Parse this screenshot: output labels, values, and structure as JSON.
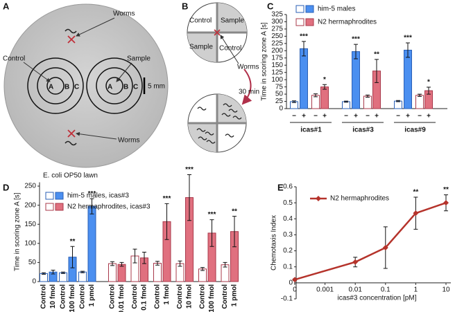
{
  "panel_a": {
    "label": "A",
    "control": "Control",
    "sample": "Sample",
    "worms_top": "Worms",
    "worms_bottom": "Worms",
    "zones": [
      "A",
      "B",
      "C"
    ],
    "scale": "5 mm",
    "lawn": "E. coli OP50 lawn"
  },
  "panel_b": {
    "label": "B",
    "quadrants": [
      "Control",
      "Sample",
      "Sample",
      "Control"
    ],
    "worms": "Worms",
    "time": "30 min"
  },
  "chart_data": [
    {
      "type": "grouped_bar",
      "panel_label": "C",
      "ylabel": "Time in scoring zone A [s]",
      "ylim": [
        0,
        325
      ],
      "yticks": [
        0,
        25,
        50,
        75,
        100,
        125,
        150,
        175,
        200,
        225,
        250,
        275,
        300,
        325
      ],
      "categories": [
        "icas#1",
        "icas#3",
        "icas#9"
      ],
      "conditions": [
        "−",
        "+"
      ],
      "legend": "upper left",
      "series": [
        {
          "name": "him-5 males",
          "color": "#4b8ff0",
          "values": [
            [
              24,
              207
            ],
            [
              24,
              197
            ],
            [
              26,
              202
            ]
          ],
          "errors": [
            [
              3,
              25
            ],
            [
              2,
              25
            ],
            [
              2,
              25
            ]
          ],
          "significance": [
            [
              null,
              "***"
            ],
            [
              null,
              "***"
            ],
            [
              null,
              "***"
            ]
          ]
        },
        {
          "name": "N2 hermaphrodites",
          "color": "#e0707f",
          "values": [
            [
              46,
              75
            ],
            [
              43,
              130
            ],
            [
              46,
              62
            ]
          ],
          "errors": [
            [
              5,
              8
            ],
            [
              4,
              40
            ],
            [
              4,
              12
            ]
          ],
          "significance": [
            [
              null,
              "*"
            ],
            [
              null,
              "**"
            ],
            [
              null,
              "*"
            ]
          ]
        }
      ]
    },
    {
      "type": "paired_bar",
      "panel_label": "D",
      "ylabel": "Time in scoring zone A [s]",
      "ylim": [
        0,
        260
      ],
      "yticks": [
        0,
        50,
        100,
        150,
        200,
        250
      ],
      "control_label": "Control",
      "legend": "upper left",
      "series": [
        {
          "name": "him-5 males, icas#3",
          "color": "#4b8ff0",
          "categories": [
            "10 fmol",
            "100 fmol",
            "1 pmol"
          ],
          "control_values": [
            21,
            23,
            25
          ],
          "control_errors": [
            2,
            2,
            2
          ],
          "values": [
            25,
            64,
            197
          ],
          "errors": [
            5,
            28,
            20
          ],
          "significance": [
            null,
            "**",
            "***"
          ]
        },
        {
          "name": "N2 hermaphrodites, icas#3",
          "color": "#e0707f",
          "categories": [
            "0.01 fmol",
            "0.1 fmol",
            "1 fmol",
            "10 fmol",
            "100 fmol",
            "1 pmol"
          ],
          "control_values": [
            47,
            67,
            48,
            47,
            33,
            44
          ],
          "control_errors": [
            5,
            18,
            5,
            7,
            4,
            6
          ],
          "values": [
            45,
            62,
            157,
            220,
            127,
            131
          ],
          "errors": [
            5,
            15,
            47,
            60,
            35,
            40
          ],
          "significance": [
            null,
            null,
            "***",
            "***",
            "***",
            "**"
          ]
        }
      ]
    },
    {
      "type": "line",
      "panel_label": "E",
      "ylabel": "Chemotaxis Index",
      "xlabel": "icas#3 concentration [pM]",
      "categories": [
        "0",
        "0.001",
        "0.01",
        "0.1",
        "1",
        "10"
      ],
      "ylim": [
        -0.1,
        0.6
      ],
      "yticks": [
        -0.1,
        0,
        0.1,
        0.2,
        0.3,
        0.4,
        0.5,
        0.6
      ],
      "legend": "upper left",
      "series": [
        {
          "name": "N2 hermaphrodites",
          "color": "#b5332b",
          "x": [
            "0",
            "0.01",
            "0.1",
            "1",
            "10"
          ],
          "values": [
            0.02,
            0.13,
            0.22,
            0.435,
            0.5
          ],
          "errors": [
            0.005,
            0.03,
            0.13,
            0.1,
            0.05
          ],
          "significance": [
            null,
            null,
            null,
            "**",
            "**"
          ]
        }
      ]
    }
  ]
}
